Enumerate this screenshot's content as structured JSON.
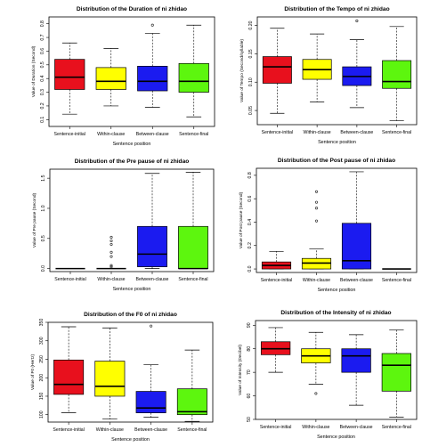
{
  "colors": [
    "#e8101d",
    "#ffff00",
    "#1b1bf0",
    "#5df60e"
  ],
  "chart_data": [
    {
      "type": "box",
      "title": "Distribution of the Duration of ni zhidao",
      "xlabel": "Sentence position",
      "ylabel": "Value of Duration (Second)",
      "categories": [
        "Sentence-initial",
        "Within-clause",
        "Between-clause",
        "Sentence-final"
      ],
      "ylim": [
        0.05,
        0.85
      ],
      "yticks": [
        0.1,
        0.2,
        0.3,
        0.4,
        0.5,
        0.6,
        0.7,
        0.8
      ],
      "ytick_labels": [
        "0.1",
        "0.2",
        "0.3",
        "0.4",
        "0.5",
        "0.6",
        "0.7",
        "0.8"
      ],
      "boxes": [
        {
          "whisker_low": 0.14,
          "q1": 0.32,
          "median": 0.41,
          "q3": 0.54,
          "whisker_high": 0.66,
          "outliers": []
        },
        {
          "whisker_low": 0.2,
          "q1": 0.32,
          "median": 0.38,
          "q3": 0.48,
          "whisker_high": 0.62,
          "outliers": []
        },
        {
          "whisker_low": 0.19,
          "q1": 0.31,
          "median": 0.38,
          "q3": 0.49,
          "whisker_high": 0.73,
          "outliers": [
            0.79
          ]
        },
        {
          "whisker_low": 0.12,
          "q1": 0.3,
          "median": 0.38,
          "q3": 0.51,
          "whisker_high": 0.79,
          "outliers": []
        }
      ]
    },
    {
      "type": "box",
      "title": "Distribution of the Tempo of ni zhidao",
      "xlabel": "Sentence position",
      "ylabel": "Value of Tempo (Second/syllable)",
      "categories": [
        "Sentence-initial",
        "Within-clause",
        "Between-clause",
        "Sentence-final"
      ],
      "ylim": [
        0.025,
        0.215
      ],
      "yticks": [
        0.05,
        0.1,
        0.15,
        0.2
      ],
      "ytick_labels": [
        "0.05",
        "0.10",
        "0.15",
        "0.20"
      ],
      "boxes": [
        {
          "whisker_low": 0.045,
          "q1": 0.098,
          "median": 0.127,
          "q3": 0.145,
          "whisker_high": 0.195,
          "outliers": []
        },
        {
          "whisker_low": 0.065,
          "q1": 0.105,
          "median": 0.122,
          "q3": 0.14,
          "whisker_high": 0.185,
          "outliers": []
        },
        {
          "whisker_low": 0.055,
          "q1": 0.094,
          "median": 0.11,
          "q3": 0.127,
          "whisker_high": 0.175,
          "outliers": [
            0.208
          ]
        },
        {
          "whisker_low": 0.032,
          "q1": 0.089,
          "median": 0.101,
          "q3": 0.138,
          "whisker_high": 0.198,
          "outliers": []
        }
      ]
    },
    {
      "type": "box",
      "title": "Distribution of the Pre pause of ni zhidao",
      "xlabel": "Sentence position",
      "ylabel": "Value of Pre pause (Second)",
      "categories": [
        "Sentence-initial",
        "Within-clause",
        "Between-clause",
        "Sentence-final"
      ],
      "ylim": [
        -0.05,
        1.65
      ],
      "yticks": [
        0.0,
        0.5,
        1.0,
        1.5
      ],
      "ytick_labels": [
        "0.0",
        "0.5",
        "1.0",
        "1.5"
      ],
      "boxes": [
        {
          "whisker_low": 0.0,
          "q1": 0.0,
          "median": 0.0,
          "q3": 0.0,
          "whisker_high": 0.0,
          "outliers": []
        },
        {
          "whisker_low": 0.0,
          "q1": 0.0,
          "median": 0.0,
          "q3": 0.0,
          "whisker_high": 0.0,
          "outliers": [
            0.03,
            0.05,
            0.2,
            0.27,
            0.4,
            0.46,
            0.52
          ]
        },
        {
          "whisker_low": 0.0,
          "q1": 0.03,
          "median": 0.24,
          "q3": 0.7,
          "whisker_high": 1.58,
          "outliers": []
        },
        {
          "whisker_low": 0.0,
          "q1": 0.0,
          "median": 0.0,
          "q3": 0.7,
          "whisker_high": 1.6,
          "outliers": []
        }
      ]
    },
    {
      "type": "box",
      "title": "Distribution of the Post pause of ni zhidao",
      "xlabel": "Sentence position",
      "ylabel": "Value of Post pause (Second)",
      "categories": [
        "Sentence-initial",
        "Within-clause",
        "Between-clause",
        "Sentence-final"
      ],
      "ylim": [
        -0.03,
        0.86
      ],
      "yticks": [
        0.0,
        0.2,
        0.4,
        0.6,
        0.8
      ],
      "ytick_labels": [
        "0.0",
        "0.2",
        "0.4",
        "0.6",
        "0.8"
      ],
      "boxes": [
        {
          "whisker_low": 0.0,
          "q1": 0.0,
          "median": 0.03,
          "q3": 0.06,
          "whisker_high": 0.15,
          "outliers": []
        },
        {
          "whisker_low": 0.0,
          "q1": 0.0,
          "median": 0.05,
          "q3": 0.09,
          "whisker_high": 0.17,
          "outliers": [
            0.41,
            0.52,
            0.57,
            0.66
          ]
        },
        {
          "whisker_low": 0.0,
          "q1": 0.0,
          "median": 0.07,
          "q3": 0.39,
          "whisker_high": 0.83,
          "outliers": []
        },
        {
          "whisker_low": 0.0,
          "q1": 0.0,
          "median": 0.0,
          "q3": 0.0,
          "whisker_high": 0.0,
          "outliers": []
        }
      ]
    },
    {
      "type": "box",
      "title": "Distribution of the F0 of ni zhidao",
      "xlabel": "Sentence position",
      "ylabel": "Value of F0 (Hertz)",
      "categories": [
        "Sentence-initial",
        "Within-clause",
        "Between-clause",
        "Sentence-final"
      ],
      "ylim": [
        80,
        350
      ],
      "yticks": [
        100,
        150,
        200,
        250,
        300,
        350
      ],
      "ytick_labels": [
        "100",
        "150",
        "200",
        "250",
        "300",
        "350"
      ],
      "boxes": [
        {
          "whisker_low": 105,
          "q1": 155,
          "median": 182,
          "q3": 248,
          "whisker_high": 338,
          "outliers": []
        },
        {
          "whisker_low": 88,
          "q1": 150,
          "median": 177,
          "q3": 245,
          "whisker_high": 335,
          "outliers": []
        },
        {
          "whisker_low": 93,
          "q1": 105,
          "median": 118,
          "q3": 163,
          "whisker_high": 235,
          "outliers": [
            340
          ]
        },
        {
          "whisker_low": 82,
          "q1": 100,
          "median": 108,
          "q3": 170,
          "whisker_high": 275,
          "outliers": []
        }
      ]
    },
    {
      "type": "box",
      "title": "Distribution of the Intensity of ni zhidao",
      "xlabel": "Sentence position",
      "ylabel": "Value of Intensity (Decibel)",
      "categories": [
        "Sentence-initial",
        "Within-clause",
        "Between-clause",
        "Sentence-final"
      ],
      "ylim": [
        50,
        92
      ],
      "yticks": [
        50,
        60,
        70,
        80,
        90
      ],
      "ytick_labels": [
        "50",
        "60",
        "70",
        "80",
        "90"
      ],
      "boxes": [
        {
          "whisker_low": 70,
          "q1": 77.5,
          "median": 80,
          "q3": 83,
          "whisker_high": 89,
          "outliers": []
        },
        {
          "whisker_low": 65,
          "q1": 74,
          "median": 77,
          "q3": 80,
          "whisker_high": 87,
          "outliers": [
            61
          ]
        },
        {
          "whisker_low": 56,
          "q1": 70,
          "median": 77,
          "q3": 80,
          "whisker_high": 86,
          "outliers": []
        },
        {
          "whisker_low": 51,
          "q1": 62,
          "median": 73,
          "q3": 78,
          "whisker_high": 88,
          "outliers": []
        }
      ]
    }
  ]
}
